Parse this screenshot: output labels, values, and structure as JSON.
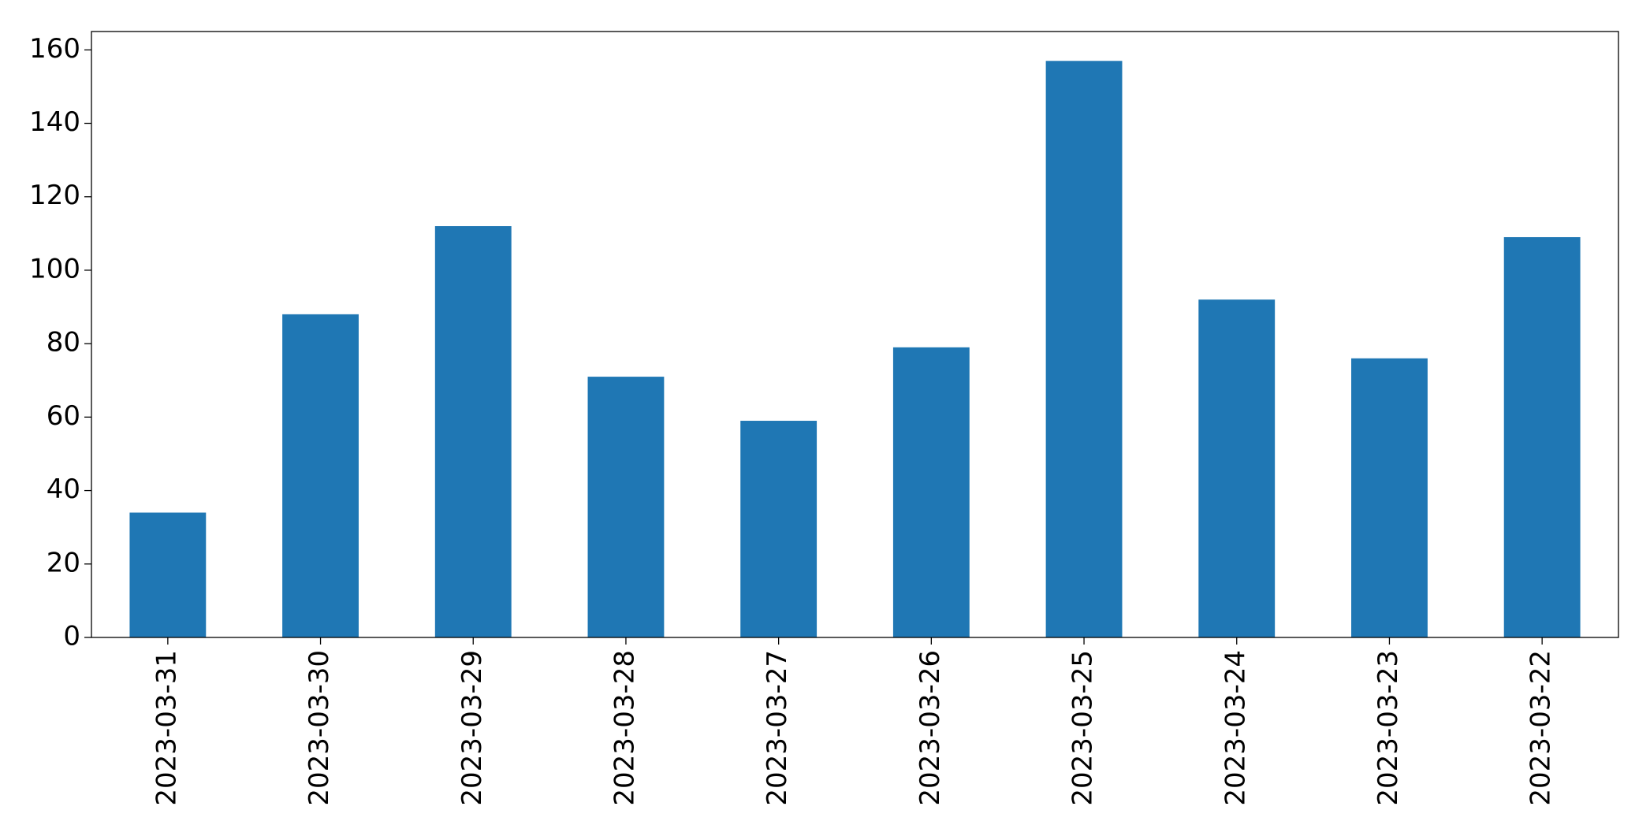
{
  "chart_data": {
    "type": "bar",
    "categories": [
      "2023-03-31",
      "2023-03-30",
      "2023-03-29",
      "2023-03-28",
      "2023-03-27",
      "2023-03-26",
      "2023-03-25",
      "2023-03-24",
      "2023-03-23",
      "2023-03-22"
    ],
    "values": [
      34,
      88,
      112,
      71,
      59,
      79,
      157,
      92,
      76,
      109
    ],
    "color": "#1f77b4",
    "ylim": [
      0,
      165
    ],
    "yticks": [
      0,
      20,
      40,
      60,
      80,
      100,
      120,
      140,
      160
    ],
    "grid": false
  }
}
